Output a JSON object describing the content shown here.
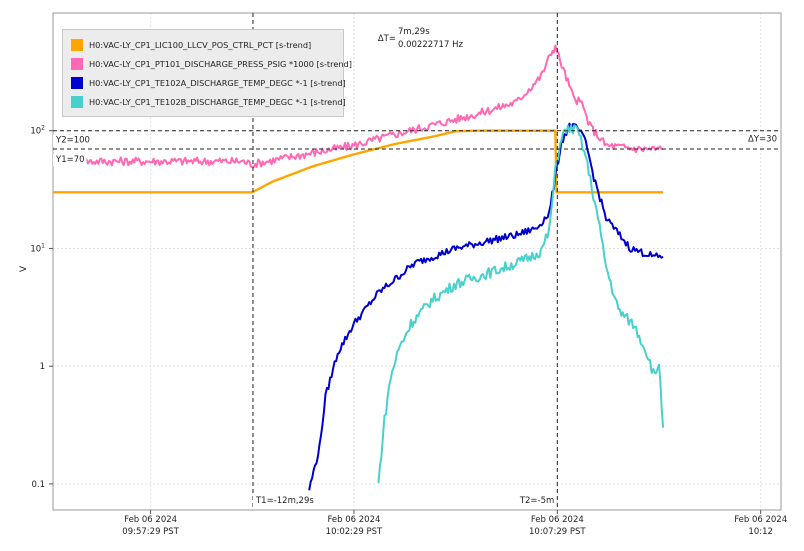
{
  "chart_data": {
    "type": "line",
    "y_scale": "log",
    "ylabel": "V",
    "ylim": [
      0.06,
      1000
    ],
    "y_ticks": [
      {
        "value": 0.1,
        "label": "0.1"
      },
      {
        "value": 1,
        "label": "1"
      },
      {
        "value": 10,
        "label": "10",
        "sup": "1"
      },
      {
        "value": 100,
        "label": "10",
        "sup": "2"
      }
    ],
    "x_ticks": [
      {
        "t": -15,
        "date": "Feb 06 2024",
        "time": "09:57:29 PST"
      },
      {
        "t": -10,
        "date": "Feb 06 2024",
        "time": "10:02:29 PST"
      },
      {
        "t": -5,
        "date": "Feb 06 2024",
        "time": "10:07:29 PST"
      },
      {
        "t": 0,
        "date": "Feb 06 2024",
        "time": "10:12"
      }
    ],
    "xlim": [
      -17.4,
      0.5
    ],
    "grid": true,
    "legend_position": "top-left",
    "series": [
      {
        "name": "H0:VAC-LY_CP1_LIC100_LLCV_POS_CTRL_PCT [s-trend]",
        "color": "#FFA500",
        "x": [
          -17.4,
          -12.75,
          -12.5,
          -12.0,
          -11.0,
          -10.0,
          -9.0,
          -8.0,
          -7.5,
          -7.0,
          -6.0,
          -5.05,
          -5.02,
          -4.9,
          -3.8,
          -2.4
        ],
        "y": [
          30,
          30,
          30,
          37,
          50,
          63,
          77,
          90,
          99,
          100,
          100,
          100,
          30,
          30,
          30,
          30
        ]
      },
      {
        "name": "H0:VAC-LY_CP1_PT101_DISCHARGE_PRESS_PSIG *1000 [s-trend]",
        "color": "#FF69B4",
        "x": [
          -16.8,
          -15.0,
          -13.0,
          -12.75,
          -12.5,
          -11.0,
          -10.0,
          -9.0,
          -8.0,
          -7.0,
          -6.0,
          -5.4,
          -5.15,
          -5.05,
          -4.85,
          -4.6,
          -4.4,
          -4.2,
          -3.8,
          -3.0,
          -2.4
        ],
        "y": [
          55,
          55,
          55,
          55,
          52,
          65,
          75,
          93,
          113,
          138,
          175,
          290,
          460,
          520,
          330,
          190,
          170,
          110,
          75,
          70,
          70
        ]
      },
      {
        "name": "H0:VAC-LY_CP1_TE102A_DISCHARGE_TEMP_DEGC *-1 [s-trend]",
        "color": "#0000CD",
        "x": [
          -11.1,
          -10.85,
          -10.7,
          -10.4,
          -10.0,
          -9.4,
          -8.5,
          -7.5,
          -6.5,
          -6.0,
          -5.5,
          -5.2,
          -5.05,
          -4.9,
          -4.7,
          -4.5,
          -4.3,
          -4.1,
          -3.8,
          -3.2,
          -2.6,
          -2.4
        ],
        "y": [
          0.09,
          0.2,
          0.55,
          1.3,
          2.3,
          4.2,
          7.5,
          10,
          12,
          13,
          15,
          20,
          40,
          80,
          110,
          105,
          80,
          40,
          18,
          10,
          8.5,
          8.5
        ]
      },
      {
        "name": "H0:VAC-LY_CP1_TE102B_DISCHARGE_TEMP_DEGC *-1 [s-trend]",
        "color": "#48D1CC",
        "x": [
          -9.4,
          -9.25,
          -9.1,
          -8.9,
          -8.6,
          -8.1,
          -7.5,
          -6.5,
          -5.8,
          -5.4,
          -5.2,
          -5.05,
          -4.9,
          -4.7,
          -4.5,
          -4.3,
          -4.0,
          -3.8,
          -3.5,
          -3.1,
          -2.8,
          -2.6,
          -2.5,
          -2.4
        ],
        "y": [
          0.1,
          0.35,
          0.8,
          1.4,
          2.3,
          3.6,
          5,
          6.5,
          8,
          9.5,
          14,
          45,
          90,
          105,
          100,
          60,
          18,
          7,
          3,
          2.2,
          1.3,
          0.8,
          1.1,
          0.3
        ]
      }
    ],
    "cursors": {
      "t1_label": "T1=-12m,29s",
      "t1": -12.483,
      "t2_label": "T2=-5m",
      "t2": -5.0,
      "delta_t_label": "ΔT=",
      "delta_t_value": "7m,29s",
      "delta_f_value": "0.00222717 Hz",
      "y1_label": "Y1=70",
      "y1": 70,
      "y2_label": "Y2=100",
      "y2": 100,
      "delta_y_label": "ΔY=30"
    }
  }
}
